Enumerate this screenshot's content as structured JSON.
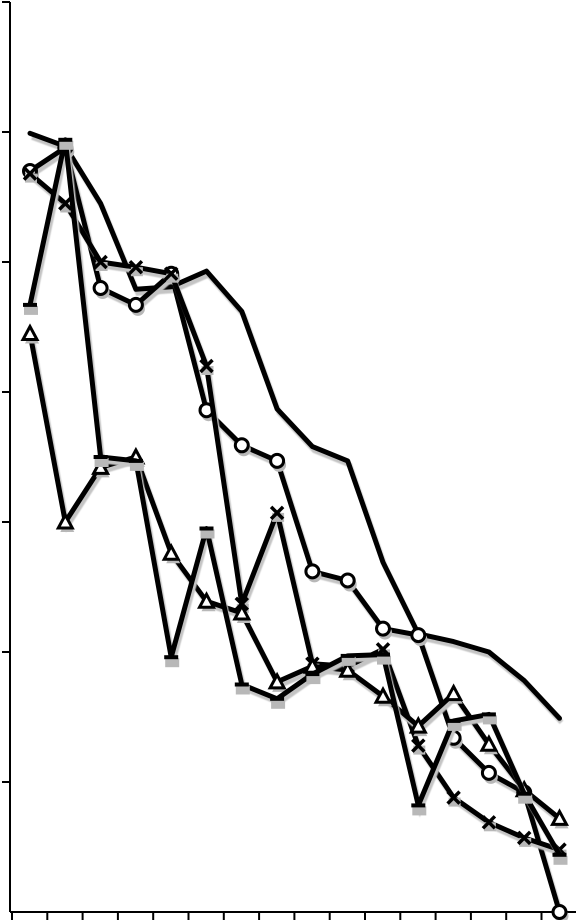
{
  "chart_data": {
    "type": "line",
    "title": "",
    "xlabel": "",
    "ylabel": "",
    "x": [
      1,
      2,
      3,
      4,
      5,
      6,
      7,
      8,
      9,
      10,
      11,
      12,
      13,
      14,
      15,
      16
    ],
    "xlim": [
      0,
      16
    ],
    "ylim": [
      0,
      7
    ],
    "yticks": [
      1,
      2,
      3,
      4,
      5,
      6,
      7
    ],
    "grid": false,
    "legend": "none",
    "tick_labels_visible": false,
    "series": [
      {
        "marker": "none",
        "values": [
          5.99,
          5.89,
          5.45,
          4.79,
          4.81,
          4.93,
          4.62,
          3.87,
          3.58,
          3.47,
          2.69,
          2.14,
          2.08,
          2.0,
          1.78,
          1.49
        ]
      },
      {
        "marker": "circle",
        "values": [
          5.7,
          5.88,
          4.8,
          4.67,
          4.91,
          3.86,
          3.59,
          3.47,
          2.62,
          2.55,
          2.18,
          2.13,
          1.34,
          1.07,
          0.92,
          0.0
        ]
      },
      {
        "marker": "x",
        "values": [
          5.68,
          5.45,
          5.0,
          4.96,
          4.91,
          4.2,
          2.37,
          3.07,
          1.91,
          1.89,
          2.02,
          1.28,
          0.88,
          0.69,
          0.57,
          0.48
        ]
      },
      {
        "marker": "triangle",
        "values": [
          4.45,
          3.0,
          3.42,
          3.5,
          2.76,
          2.39,
          2.3,
          1.77,
          1.89,
          1.86,
          1.66,
          1.43,
          1.68,
          1.29,
          0.94,
          0.72
        ]
      },
      {
        "marker": "bar",
        "values": [
          4.67,
          5.94,
          3.5,
          3.47,
          1.96,
          2.95,
          1.75,
          1.64,
          1.83,
          1.97,
          1.98,
          0.82,
          1.47,
          1.52,
          0.91,
          0.44
        ]
      }
    ]
  }
}
